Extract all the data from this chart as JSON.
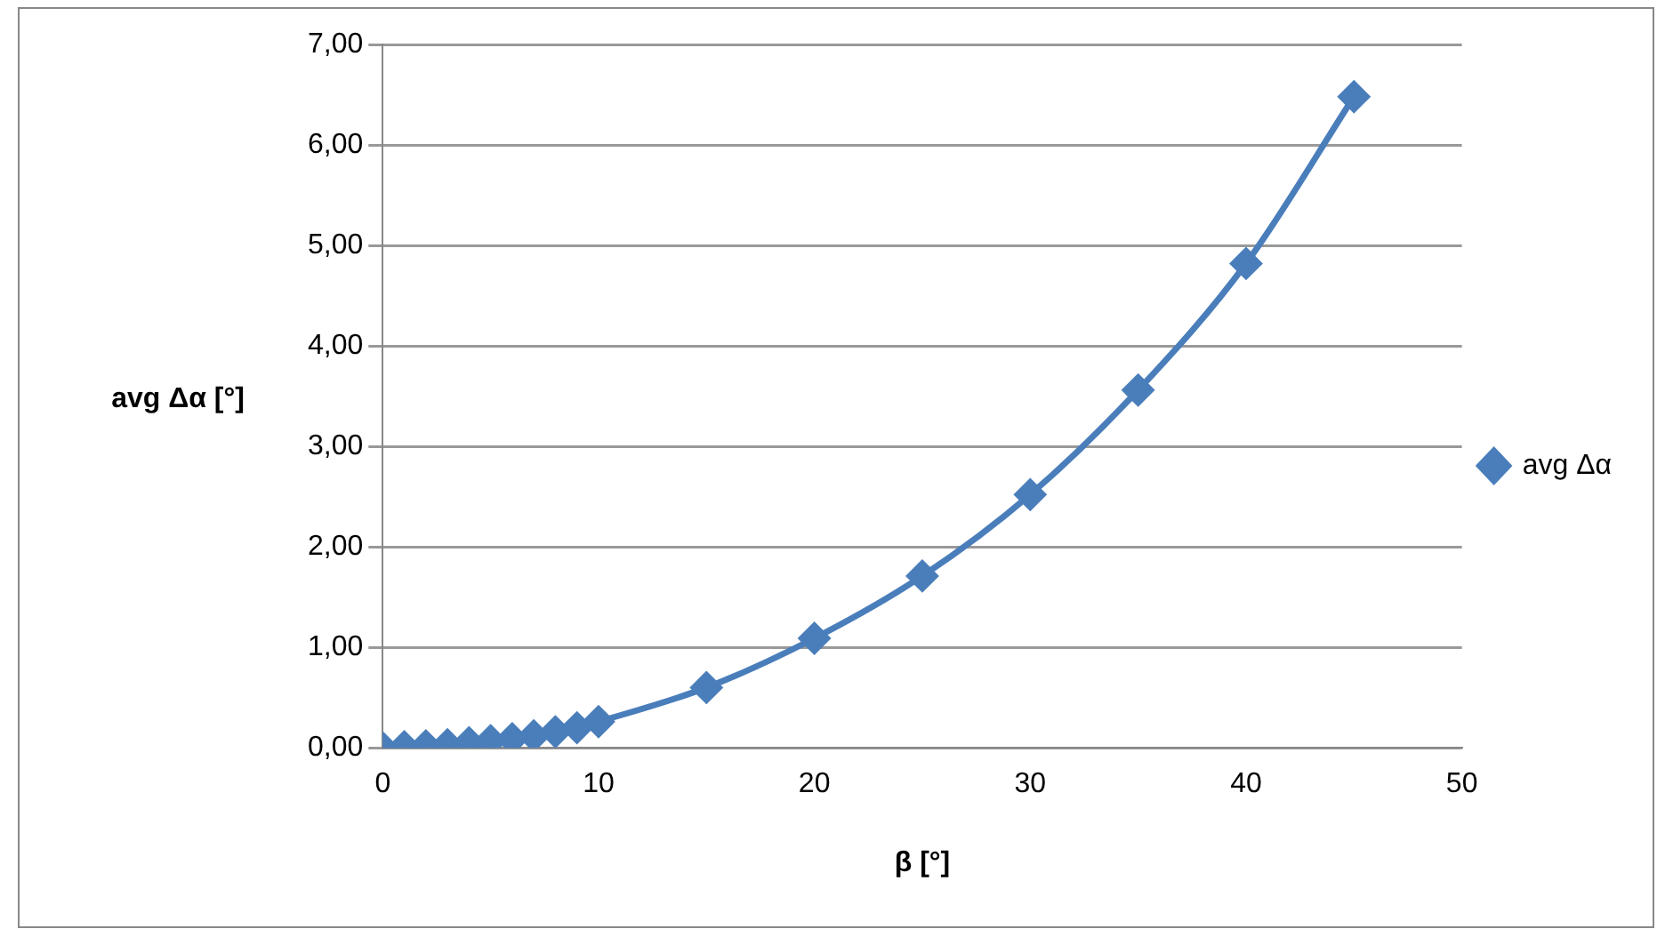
{
  "chart_data": {
    "type": "line",
    "xlabel": "β [°]",
    "ylabel": "avg Δα [°]",
    "x": [
      0,
      1,
      2,
      3,
      4,
      5,
      6,
      7,
      8,
      9,
      10,
      15,
      20,
      25,
      30,
      35,
      40,
      45
    ],
    "series": [
      {
        "name": "avg Δα",
        "color": "#4a7ebb",
        "values": [
          0.0,
          0.01,
          0.02,
          0.03,
          0.05,
          0.07,
          0.09,
          0.12,
          0.16,
          0.2,
          0.26,
          0.6,
          1.09,
          1.71,
          2.52,
          3.56,
          4.82,
          6.48
        ]
      }
    ],
    "xlim": [
      0,
      50
    ],
    "xticks": [
      0,
      10,
      20,
      30,
      40,
      50
    ],
    "ylim": [
      0,
      7
    ],
    "yticks": [
      {
        "value": 0,
        "label": "0,00"
      },
      {
        "value": 1,
        "label": "1,00"
      },
      {
        "value": 2,
        "label": "2,00"
      },
      {
        "value": 3,
        "label": "3,00"
      },
      {
        "value": 4,
        "label": "4,00"
      },
      {
        "value": 5,
        "label": "5,00"
      },
      {
        "value": 6,
        "label": "6,00"
      },
      {
        "value": 7,
        "label": "7,00"
      }
    ],
    "grid": "y",
    "legend": "right",
    "marker": "diamond",
    "line_style": "solid"
  }
}
